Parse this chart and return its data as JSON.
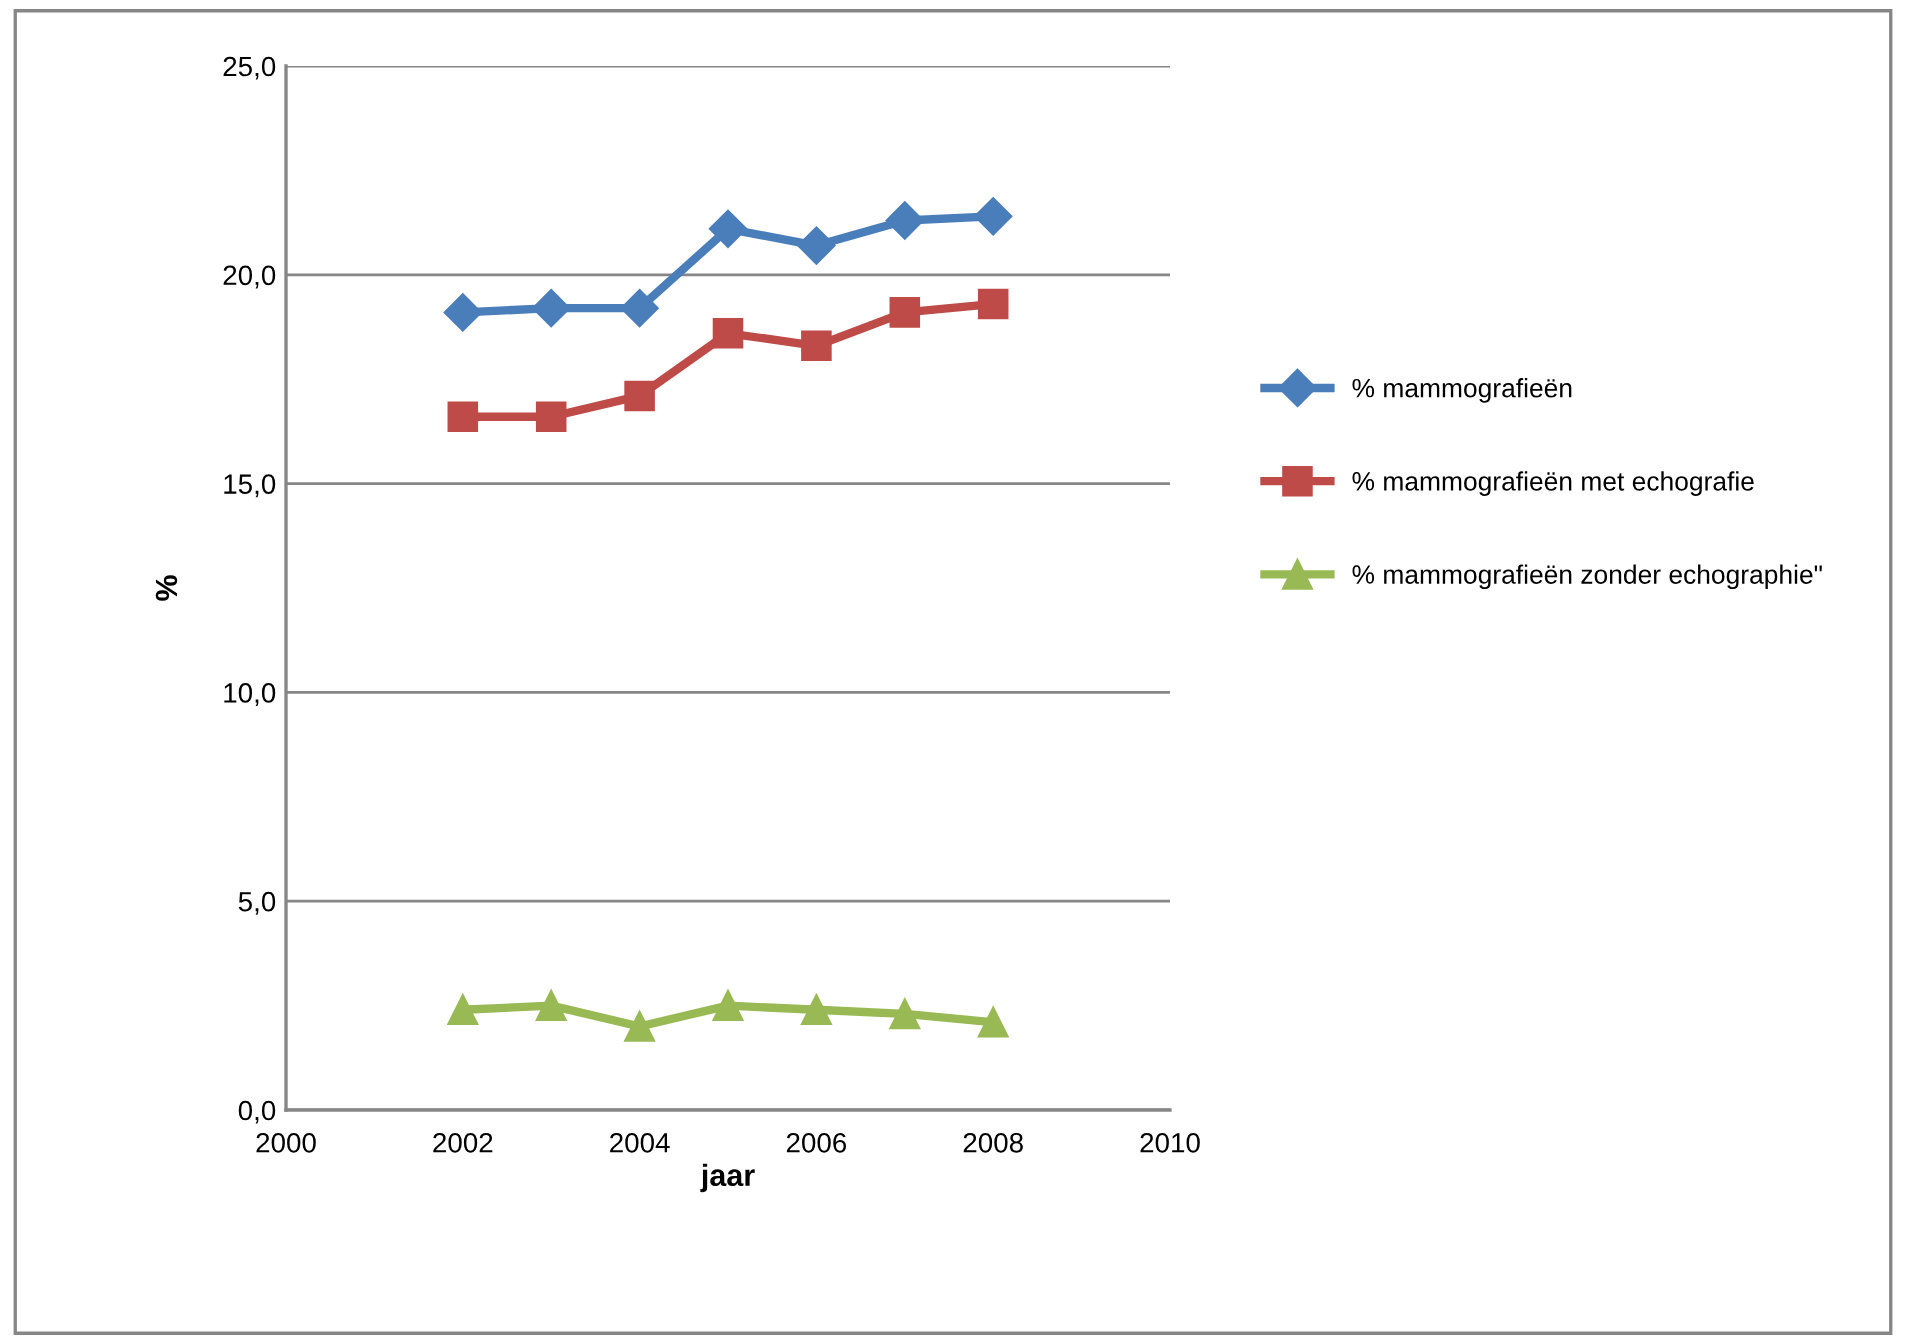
{
  "chart_data": {
    "type": "line",
    "xlabel": "jaar",
    "ylabel": "%",
    "x": [
      2002,
      2003,
      2004,
      2005,
      2006,
      2007,
      2008
    ],
    "xlim": [
      2000,
      2010
    ],
    "xticks": [
      2000,
      2002,
      2004,
      2006,
      2008,
      2010
    ],
    "ylim": [
      0,
      25
    ],
    "yticks": [
      {
        "value": 0,
        "label": "0,0"
      },
      {
        "value": 5,
        "label": "5,0"
      },
      {
        "value": 10,
        "label": "10,0"
      },
      {
        "value": 15,
        "label": "15,0"
      },
      {
        "value": 20,
        "label": "20,0"
      },
      {
        "value": 25,
        "label": "25,0"
      }
    ],
    "grid": "y",
    "legend": "right",
    "line_style": "solid",
    "series": [
      {
        "name": "% mammografieën",
        "color": "#4a7ebb",
        "marker": "diamond",
        "values": [
          19.1,
          19.2,
          19.2,
          21.1,
          20.7,
          21.3,
          21.4
        ]
      },
      {
        "name": "% mammografieën met echografie",
        "color": "#be4b48",
        "marker": "square",
        "values": [
          16.6,
          16.6,
          17.1,
          18.6,
          18.3,
          19.1,
          19.3
        ]
      },
      {
        "name": "% mammografieën zonder echographie\"",
        "color": "#98b954",
        "marker": "triangle",
        "values": [
          2.4,
          2.5,
          2.0,
          2.5,
          2.4,
          2.3,
          2.1
        ]
      }
    ]
  }
}
